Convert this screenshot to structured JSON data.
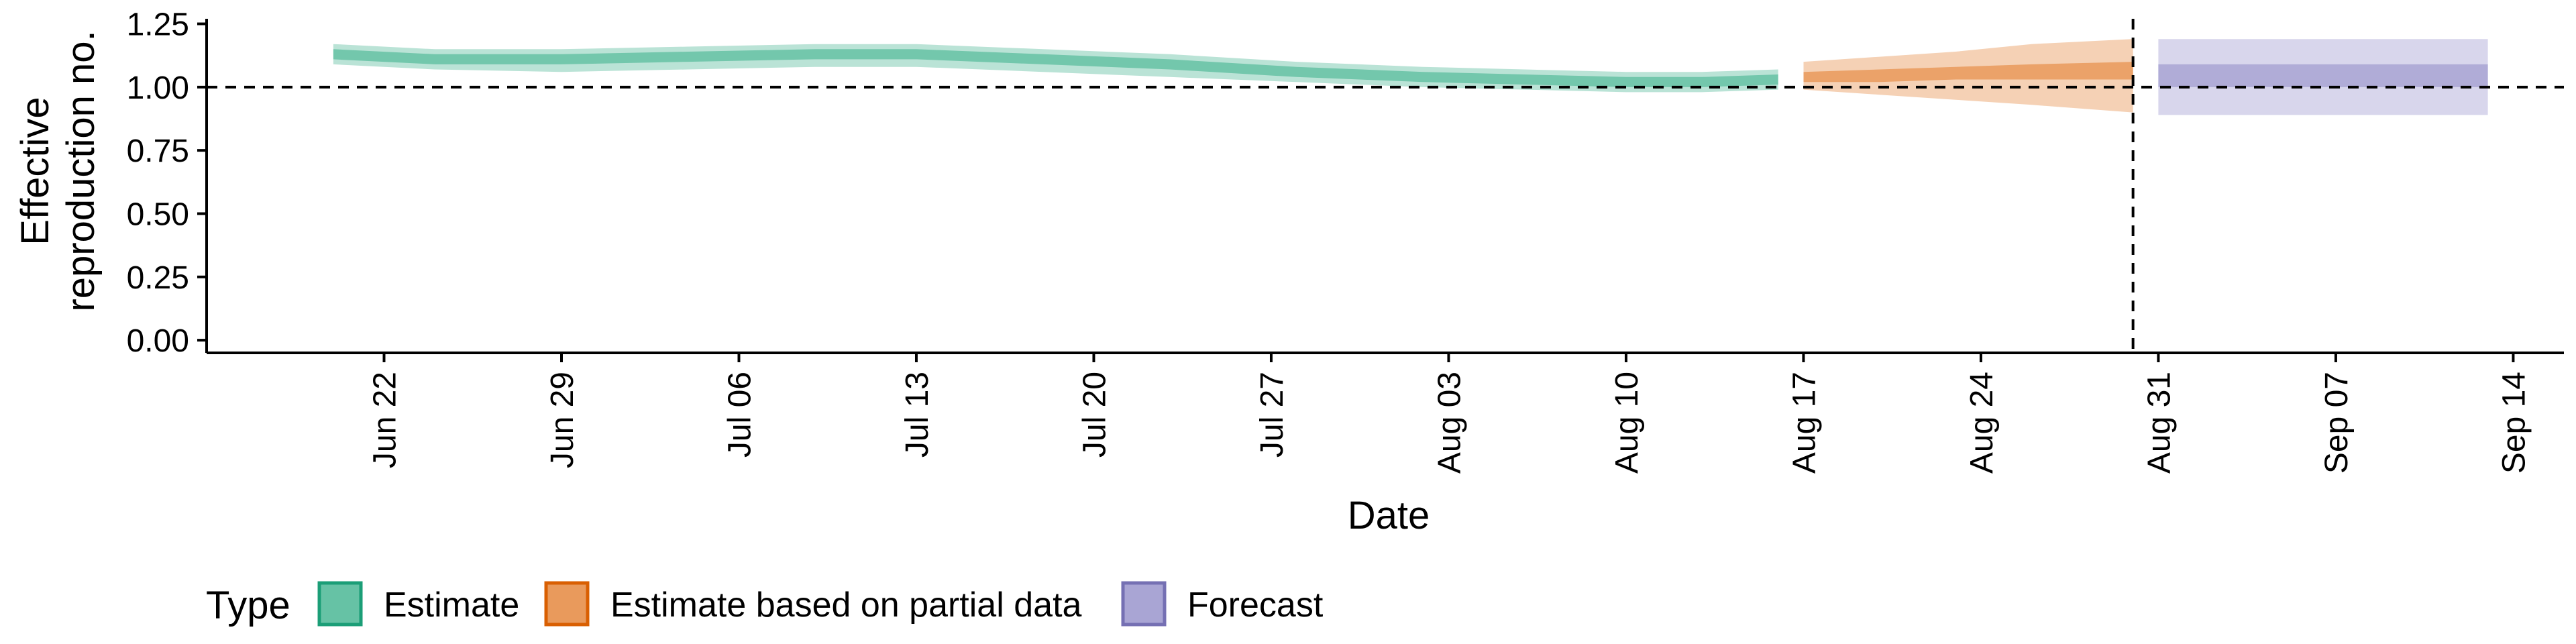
{
  "chart_data": {
    "type": "area",
    "title": "",
    "xlabel": "Date",
    "ylabel": [
      "Effective",
      "reproduction no."
    ],
    "x_tick_labels": [
      "Jun 22",
      "Jun 29",
      "Jul 06",
      "Jul 13",
      "Jul 20",
      "Jul 27",
      "Aug 03",
      "Aug 10",
      "Aug 17",
      "Aug 24",
      "Aug 31",
      "Sep 07",
      "Sep 14"
    ],
    "x_tick_dates": [
      "2020-06-22",
      "2020-06-29",
      "2020-07-06",
      "2020-07-13",
      "2020-07-20",
      "2020-07-27",
      "2020-08-03",
      "2020-08-10",
      "2020-08-17",
      "2020-08-24",
      "2020-08-31",
      "2020-09-07",
      "2020-09-14"
    ],
    "xlim": [
      "2020-06-15",
      "2020-09-16"
    ],
    "y_ticks": [
      0.0,
      0.25,
      0.5,
      0.75,
      1.0,
      1.25
    ],
    "y_tick_labels": [
      "0.00",
      "0.25",
      "0.50",
      "0.75",
      "1.00",
      "1.25"
    ],
    "ylim": [
      -0.05,
      1.27
    ],
    "reference_hline": 1.0,
    "reference_vline": "2020-08-30",
    "legend": {
      "title": "Type",
      "position": "bottom-left"
    },
    "grid": false,
    "series": [
      {
        "name": "Estimate",
        "color": "#1b9e77",
        "fill": "#66c2a5",
        "x": [
          "2020-06-20",
          "2020-06-24",
          "2020-06-29",
          "2020-07-04",
          "2020-07-09",
          "2020-07-13",
          "2020-07-18",
          "2020-07-23",
          "2020-07-28",
          "2020-08-02",
          "2020-08-06",
          "2020-08-10",
          "2020-08-13",
          "2020-08-16"
        ],
        "outer_upper": [
          1.17,
          1.15,
          1.15,
          1.16,
          1.17,
          1.17,
          1.15,
          1.13,
          1.1,
          1.08,
          1.07,
          1.06,
          1.06,
          1.07
        ],
        "outer_lower": [
          1.09,
          1.07,
          1.06,
          1.07,
          1.08,
          1.08,
          1.06,
          1.04,
          1.02,
          1.0,
          0.99,
          0.98,
          0.98,
          0.99
        ],
        "inner_upper": [
          1.15,
          1.13,
          1.13,
          1.14,
          1.15,
          1.15,
          1.13,
          1.11,
          1.08,
          1.06,
          1.05,
          1.04,
          1.04,
          1.05
        ],
        "inner_lower": [
          1.11,
          1.09,
          1.09,
          1.1,
          1.11,
          1.11,
          1.09,
          1.07,
          1.04,
          1.02,
          1.01,
          1.0,
          1.0,
          1.01
        ]
      },
      {
        "name": "Estimate based on partial data",
        "color": "#d95f02",
        "fill": "#e99a5c",
        "x": [
          "2020-08-17",
          "2020-08-20",
          "2020-08-23",
          "2020-08-26",
          "2020-08-30"
        ],
        "outer_upper": [
          1.1,
          1.12,
          1.14,
          1.17,
          1.19
        ],
        "outer_lower": [
          0.99,
          0.97,
          0.95,
          0.93,
          0.9
        ],
        "inner_upper": [
          1.06,
          1.07,
          1.08,
          1.09,
          1.1
        ],
        "inner_lower": [
          1.02,
          1.02,
          1.03,
          1.03,
          1.03
        ]
      },
      {
        "name": "Forecast",
        "color": "#7570b3",
        "fill": "#a9a5d4",
        "x": [
          "2020-08-31",
          "2020-09-13"
        ],
        "outer_upper": [
          1.19,
          1.19
        ],
        "outer_lower": [
          0.89,
          0.89
        ],
        "inner_upper": [
          1.09,
          1.09
        ],
        "inner_lower": [
          1.0,
          1.0
        ]
      }
    ]
  }
}
